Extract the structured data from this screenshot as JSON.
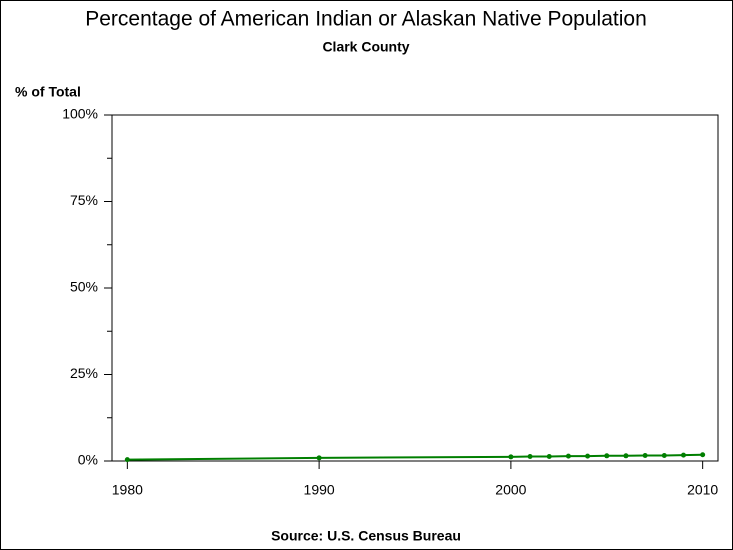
{
  "chart_data": {
    "type": "line",
    "title": "Percentage of American Indian or Alaskan Native Population",
    "subtitle": "Clark County",
    "y_label": "% of Total",
    "source": "Source: U.S. Census Bureau",
    "x": [
      1980,
      1990,
      2000,
      2001,
      2002,
      2003,
      2004,
      2005,
      2006,
      2007,
      2008,
      2009,
      2010
    ],
    "series": [
      {
        "name": "Clark County",
        "color": "#007f00",
        "values": [
          0.4,
          0.9,
          1.2,
          1.3,
          1.3,
          1.4,
          1.4,
          1.5,
          1.5,
          1.6,
          1.6,
          1.7,
          1.8
        ]
      }
    ],
    "xlim": [
      1979.2,
      2010.8
    ],
    "xticks": [
      1980,
      1990,
      2000,
      2010
    ],
    "ylim": [
      0,
      100
    ],
    "yticks": [
      {
        "value": 0,
        "label": "0%"
      },
      {
        "value": 25,
        "label": "25%"
      },
      {
        "value": 50,
        "label": "50%"
      },
      {
        "value": 75,
        "label": "75%"
      },
      {
        "value": 100,
        "label": "100%"
      }
    ],
    "yminor_ticks": [
      12.5,
      37.5,
      62.5,
      87.5
    ],
    "grid": false
  }
}
